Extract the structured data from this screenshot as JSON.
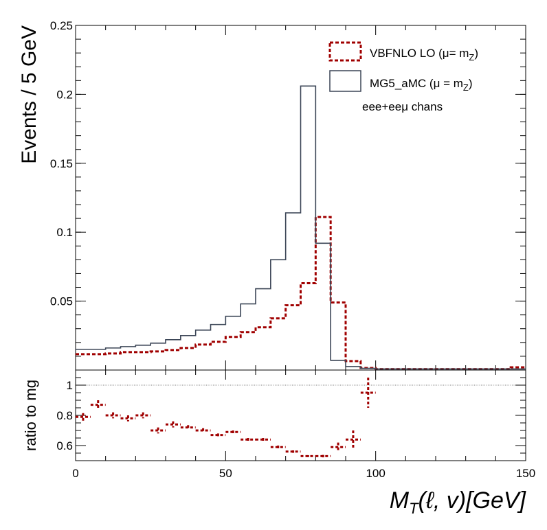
{
  "chart_data": [
    {
      "type": "step-histogram",
      "panel": "main",
      "ylabel": "Events / 5 GeV",
      "ylim": [
        0,
        0.25
      ],
      "xlim": [
        0,
        150
      ],
      "bin_width": 5,
      "y_ticks": [
        "0.05",
        "0.1",
        "0.15",
        "0.2",
        "0.25"
      ],
      "legend_position": "top-right",
      "series": [
        {
          "name": "VBFNLO LO (μ= m_Z)",
          "color": "#a00000",
          "style": "dashed",
          "values": [
            0.0115,
            0.0115,
            0.012,
            0.013,
            0.013,
            0.0135,
            0.0145,
            0.016,
            0.0185,
            0.0205,
            0.024,
            0.0275,
            0.031,
            0.0375,
            0.047,
            0.063,
            0.111,
            0.049,
            0.0065,
            0.0015,
            0.0007,
            0.0007,
            0.0007,
            0.0007,
            0.0007,
            0.0007,
            0.0007,
            0.0007,
            0.0007,
            0.002
          ]
        },
        {
          "name": "MG5_aMC (μ = m_Z)",
          "color": "#3b4556",
          "style": "solid",
          "values": [
            0.015,
            0.015,
            0.016,
            0.017,
            0.018,
            0.0195,
            0.022,
            0.025,
            0.029,
            0.033,
            0.039,
            0.048,
            0.059,
            0.08,
            0.114,
            0.206,
            0.092,
            0.007,
            0.0025,
            0.0012,
            0.0008,
            0.0008,
            0.0008,
            0.0008,
            0.0008,
            0.0008,
            0.0008,
            0.0008,
            0.0008,
            0.0008
          ]
        }
      ],
      "annotation": "eee+eeμ chans"
    },
    {
      "type": "scatter-errorbar",
      "panel": "ratio",
      "ylabel": "ratio to mg",
      "xlabel": "M_T(ℓ, v)[GeV]",
      "xlim": [
        0,
        150
      ],
      "ylim": [
        0.5,
        1.1
      ],
      "reference_line": 1,
      "x_ticks": [
        "0",
        "50",
        "100",
        "150"
      ],
      "y_ticks": [
        "0.6",
        "0.8",
        "1"
      ],
      "color": "#a00000",
      "points": [
        {
          "x": 2.5,
          "y": 0.79,
          "err": 0.025
        },
        {
          "x": 7.5,
          "y": 0.87,
          "err": 0.03
        },
        {
          "x": 12.5,
          "y": 0.8,
          "err": 0.02
        },
        {
          "x": 17.5,
          "y": 0.78,
          "err": 0.02
        },
        {
          "x": 22.5,
          "y": 0.8,
          "err": 0.02
        },
        {
          "x": 27.5,
          "y": 0.7,
          "err": 0.02
        },
        {
          "x": 32.5,
          "y": 0.74,
          "err": 0.02
        },
        {
          "x": 37.5,
          "y": 0.72,
          "err": 0.015
        },
        {
          "x": 42.5,
          "y": 0.7,
          "err": 0.015
        },
        {
          "x": 47.5,
          "y": 0.67,
          "err": 0.01
        },
        {
          "x": 52.5,
          "y": 0.69,
          "err": 0.01
        },
        {
          "x": 57.5,
          "y": 0.64,
          "err": 0.01
        },
        {
          "x": 62.5,
          "y": 0.64,
          "err": 0.01
        },
        {
          "x": 67.5,
          "y": 0.59,
          "err": 0.01
        },
        {
          "x": 72.5,
          "y": 0.56,
          "err": 0.008
        },
        {
          "x": 77.5,
          "y": 0.53,
          "err": 0.006
        },
        {
          "x": 82.5,
          "y": 0.53,
          "err": 0.008
        },
        {
          "x": 87.5,
          "y": 0.59,
          "err": 0.03
        },
        {
          "x": 92.5,
          "y": 0.64,
          "err": 0.06
        },
        {
          "x": 97.5,
          "y": 0.95,
          "err": 0.1
        }
      ]
    }
  ],
  "legend": {
    "entry1_main": "VBFNLO LO (μ= m",
    "entry1_sub": "Z",
    "entry1_close": ")",
    "entry2_main": "MG5_aMC (μ = m",
    "entry2_sub": "Z",
    "entry2_close": ")",
    "annotation": "eee+eeμ chans"
  },
  "axes": {
    "ylabel_main": "Events / 5 GeV",
    "ylabel_ratio": "ratio to mg",
    "xlabel_M": "M",
    "xlabel_T": "T",
    "xlabel_rest": "(ℓ, v)[GeV]"
  }
}
